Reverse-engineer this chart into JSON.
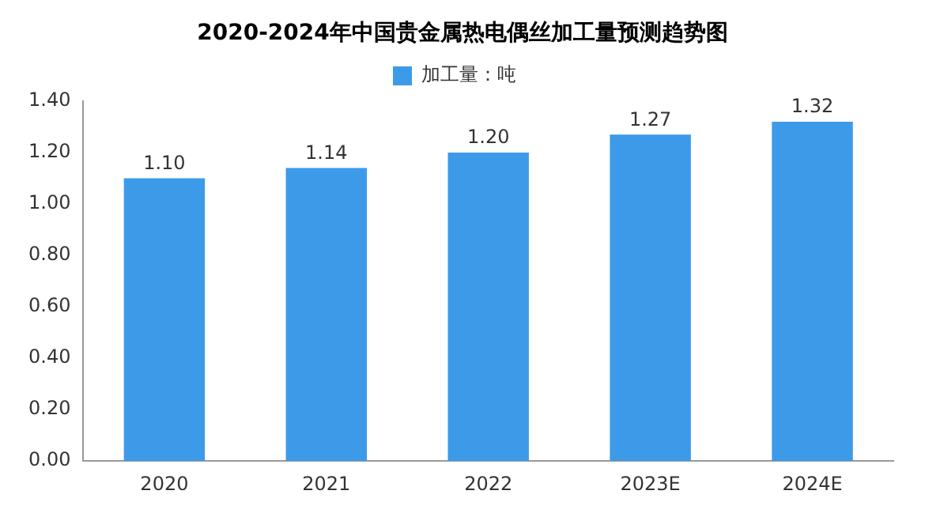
{
  "chart_data": {
    "type": "bar",
    "title": "2020-2024年中国贵金属热电偶丝加工量预测趋势图",
    "categories": [
      "2020",
      "2021",
      "2022",
      "2023E",
      "2024E"
    ],
    "series": [
      {
        "name": "加工量：吨",
        "color": "#3d9ae8",
        "values": [
          1.1,
          1.14,
          1.2,
          1.27,
          1.32
        ]
      }
    ],
    "ylim": [
      0,
      1.4
    ],
    "yticks": [
      {
        "value": 0,
        "label": "0.00"
      },
      {
        "value": 0.2,
        "label": "0.20"
      },
      {
        "value": 0.4,
        "label": "0.40"
      },
      {
        "value": 0.6,
        "label": "0.60"
      },
      {
        "value": 0.8,
        "label": "0.80"
      },
      {
        "value": 1.0,
        "label": "1.00"
      },
      {
        "value": 1.2,
        "label": "1.20"
      },
      {
        "value": 1.4,
        "label": "1.40"
      }
    ],
    "value_labels": [
      "1.10",
      "1.14",
      "1.20",
      "1.27",
      "1.32"
    ],
    "grid": false,
    "legend": "top"
  }
}
